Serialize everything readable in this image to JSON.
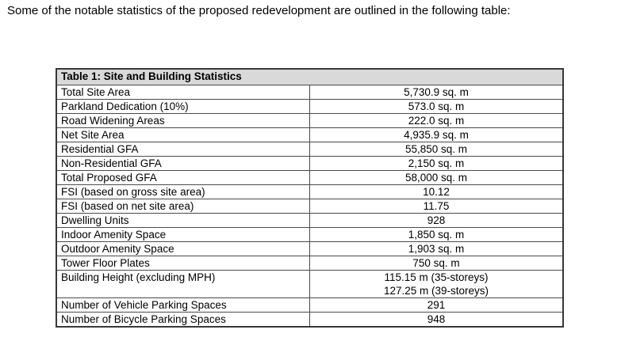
{
  "intro": "Some of the notable statistics of the proposed redevelopment are outlined in the following table:",
  "table": {
    "title": "Table 1: Site and Building Statistics",
    "rows": [
      {
        "label": "Total Site Area",
        "value": "5,730.9 sq. m"
      },
      {
        "label": "Parkland Dedication (10%)",
        "value": "573.0 sq. m"
      },
      {
        "label": "Road Widening Areas",
        "value": "222.0 sq. m"
      },
      {
        "label": "Net Site Area",
        "value": "4,935.9 sq. m"
      },
      {
        "label": "Residential GFA",
        "value": "55,850 sq. m"
      },
      {
        "label": "Non-Residential GFA",
        "value": "2,150 sq. m"
      },
      {
        "label": "Total Proposed GFA",
        "value": "58,000 sq. m"
      },
      {
        "label": "FSI (based on gross site area)",
        "value": "10.12"
      },
      {
        "label": "FSI (based on net site area)",
        "value": "11.75"
      },
      {
        "label": "Dwelling Units",
        "value": "928"
      },
      {
        "label": "Indoor Amenity Space",
        "value": "1,850 sq. m"
      },
      {
        "label": "Outdoor Amenity Space",
        "value": "1,903 sq. m"
      },
      {
        "label": "Tower Floor Plates",
        "value": "750 sq. m"
      },
      {
        "label": "Building Height (excluding MPH)",
        "value": "115.15 m (35-storeys)\n127.25 m (39-storeys)"
      },
      {
        "label": "Number of Vehicle Parking Spaces",
        "value": "291"
      },
      {
        "label": "Number of Bicycle Parking Spaces",
        "value": "948"
      }
    ]
  },
  "colors": {
    "header_background": "#d9d9d9",
    "border": "#4a4a4a",
    "text": "#000000",
    "page_background": "#ffffff"
  }
}
